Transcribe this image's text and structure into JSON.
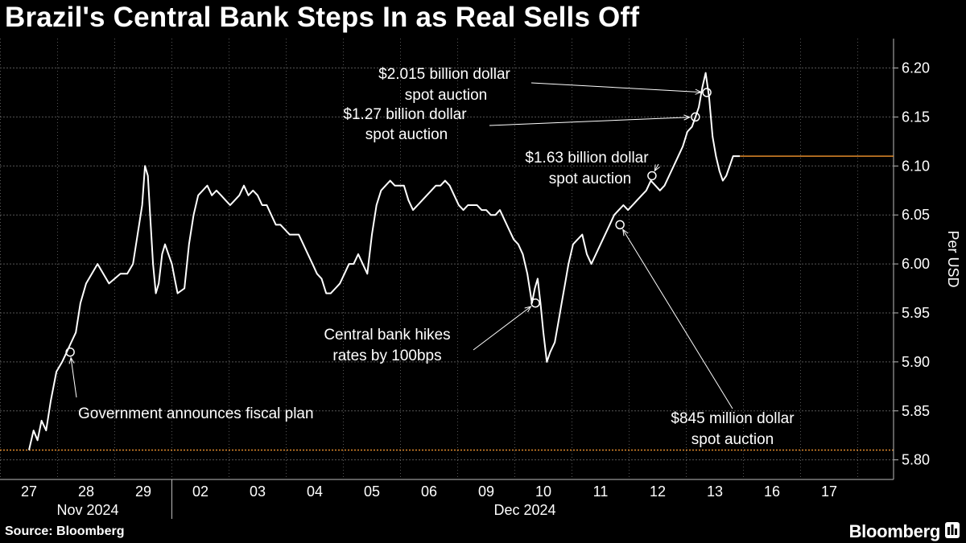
{
  "title": "Brazil's Central Bank Steps In as Real Sells Off",
  "source": "Source: Bloomberg",
  "brand": "Bloomberg",
  "colors": {
    "background": "#000000",
    "line": "#ffffff",
    "grid": "#555555",
    "reference_line": "#e08a2a"
  },
  "chart_data": {
    "type": "line",
    "title": "Brazil's Central Bank Steps In as Real Sells Off",
    "ylabel": "Per USD",
    "ylim": [
      5.78,
      6.23
    ],
    "yticks": [
      5.8,
      5.85,
      5.9,
      5.95,
      6.0,
      6.05,
      6.1,
      6.15,
      6.2
    ],
    "ytick_labels": [
      "5.80",
      "5.85",
      "5.90",
      "5.95",
      "6.00",
      "6.05",
      "6.10",
      "6.15",
      "6.20"
    ],
    "grid": true,
    "x_day_labels": [
      "27",
      "28",
      "29",
      "02",
      "03",
      "04",
      "05",
      "06",
      "09",
      "10",
      "11",
      "12",
      "13",
      "16",
      "17"
    ],
    "month_labels": [
      "Nov 2024",
      "Dec 2024"
    ],
    "reference_value": 5.81,
    "last_value": 6.11,
    "series": [
      {
        "points": [
          [
            0.0,
            5.81
          ],
          [
            0.08,
            5.83
          ],
          [
            0.15,
            5.82
          ],
          [
            0.22,
            5.84
          ],
          [
            0.3,
            5.83
          ],
          [
            0.38,
            5.86
          ],
          [
            0.48,
            5.89
          ],
          [
            0.58,
            5.9
          ],
          [
            0.66,
            5.91
          ],
          [
            0.74,
            5.92
          ],
          [
            0.82,
            5.93
          ],
          [
            0.9,
            5.96
          ],
          [
            1.0,
            5.98
          ],
          [
            1.1,
            5.99
          ],
          [
            1.2,
            6.0
          ],
          [
            1.3,
            5.99
          ],
          [
            1.4,
            5.98
          ],
          [
            1.5,
            5.985
          ],
          [
            1.6,
            5.99
          ],
          [
            1.72,
            5.99
          ],
          [
            1.82,
            6.0
          ],
          [
            1.9,
            6.03
          ],
          [
            1.98,
            6.06
          ],
          [
            2.03,
            6.1
          ],
          [
            2.08,
            6.09
          ],
          [
            2.12,
            6.05
          ],
          [
            2.17,
            6.0
          ],
          [
            2.22,
            5.97
          ],
          [
            2.27,
            5.98
          ],
          [
            2.33,
            6.01
          ],
          [
            2.38,
            6.02
          ],
          [
            2.44,
            6.01
          ],
          [
            2.5,
            6.0
          ],
          [
            2.55,
            5.985
          ],
          [
            2.6,
            5.97
          ],
          [
            2.72,
            5.975
          ],
          [
            2.8,
            6.02
          ],
          [
            2.88,
            6.05
          ],
          [
            2.96,
            6.07
          ],
          [
            3.04,
            6.075
          ],
          [
            3.12,
            6.08
          ],
          [
            3.2,
            6.07
          ],
          [
            3.28,
            6.075
          ],
          [
            3.36,
            6.07
          ],
          [
            3.44,
            6.065
          ],
          [
            3.52,
            6.06
          ],
          [
            3.6,
            6.065
          ],
          [
            3.68,
            6.07
          ],
          [
            3.76,
            6.08
          ],
          [
            3.84,
            6.07
          ],
          [
            3.92,
            6.075
          ],
          [
            4.0,
            6.07
          ],
          [
            4.08,
            6.06
          ],
          [
            4.16,
            6.06
          ],
          [
            4.24,
            6.05
          ],
          [
            4.32,
            6.04
          ],
          [
            4.4,
            6.04
          ],
          [
            4.48,
            6.035
          ],
          [
            4.56,
            6.03
          ],
          [
            4.64,
            6.03
          ],
          [
            4.72,
            6.03
          ],
          [
            4.8,
            6.02
          ],
          [
            4.88,
            6.01
          ],
          [
            4.96,
            6.0
          ],
          [
            5.04,
            5.99
          ],
          [
            5.12,
            5.985
          ],
          [
            5.2,
            5.97
          ],
          [
            5.28,
            5.97
          ],
          [
            5.36,
            5.975
          ],
          [
            5.44,
            5.98
          ],
          [
            5.52,
            5.99
          ],
          [
            5.6,
            6.0
          ],
          [
            5.68,
            6.0
          ],
          [
            5.76,
            6.01
          ],
          [
            5.84,
            6.0
          ],
          [
            5.92,
            5.99
          ],
          [
            6.0,
            6.03
          ],
          [
            6.08,
            6.06
          ],
          [
            6.16,
            6.075
          ],
          [
            6.24,
            6.08
          ],
          [
            6.32,
            6.085
          ],
          [
            6.4,
            6.08
          ],
          [
            6.48,
            6.08
          ],
          [
            6.56,
            6.08
          ],
          [
            6.64,
            6.065
          ],
          [
            6.72,
            6.055
          ],
          [
            6.8,
            6.06
          ],
          [
            6.88,
            6.065
          ],
          [
            6.96,
            6.07
          ],
          [
            7.04,
            6.075
          ],
          [
            7.12,
            6.08
          ],
          [
            7.2,
            6.08
          ],
          [
            7.28,
            6.085
          ],
          [
            7.36,
            6.08
          ],
          [
            7.44,
            6.07
          ],
          [
            7.52,
            6.06
          ],
          [
            7.6,
            6.055
          ],
          [
            7.68,
            6.06
          ],
          [
            7.76,
            6.06
          ],
          [
            7.84,
            6.06
          ],
          [
            7.92,
            6.055
          ],
          [
            8.0,
            6.055
          ],
          [
            8.08,
            6.05
          ],
          [
            8.16,
            6.05
          ],
          [
            8.24,
            6.055
          ],
          [
            8.32,
            6.045
          ],
          [
            8.4,
            6.035
          ],
          [
            8.48,
            6.025
          ],
          [
            8.56,
            6.02
          ],
          [
            8.64,
            6.01
          ],
          [
            8.72,
            5.99
          ],
          [
            8.8,
            5.96
          ],
          [
            8.85,
            5.975
          ],
          [
            8.9,
            5.985
          ],
          [
            8.95,
            5.96
          ],
          [
            9.0,
            5.93
          ],
          [
            9.06,
            5.9
          ],
          [
            9.12,
            5.91
          ],
          [
            9.2,
            5.92
          ],
          [
            9.26,
            5.94
          ],
          [
            9.32,
            5.96
          ],
          [
            9.38,
            5.98
          ],
          [
            9.44,
            6.0
          ],
          [
            9.52,
            6.02
          ],
          [
            9.6,
            6.025
          ],
          [
            9.68,
            6.03
          ],
          [
            9.76,
            6.01
          ],
          [
            9.84,
            6.0
          ],
          [
            9.92,
            6.01
          ],
          [
            10.0,
            6.02
          ],
          [
            10.08,
            6.03
          ],
          [
            10.16,
            6.04
          ],
          [
            10.24,
            6.05
          ],
          [
            10.32,
            6.055
          ],
          [
            10.4,
            6.06
          ],
          [
            10.48,
            6.055
          ],
          [
            10.56,
            6.06
          ],
          [
            10.64,
            6.065
          ],
          [
            10.72,
            6.07
          ],
          [
            10.8,
            6.075
          ],
          [
            10.88,
            6.085
          ],
          [
            10.96,
            6.08
          ],
          [
            11.04,
            6.075
          ],
          [
            11.12,
            6.08
          ],
          [
            11.2,
            6.09
          ],
          [
            11.28,
            6.1
          ],
          [
            11.36,
            6.11
          ],
          [
            11.44,
            6.12
          ],
          [
            11.52,
            6.135
          ],
          [
            11.6,
            6.14
          ],
          [
            11.66,
            6.15
          ],
          [
            11.72,
            6.16
          ],
          [
            11.78,
            6.18
          ],
          [
            11.84,
            6.195
          ],
          [
            11.9,
            6.17
          ],
          [
            11.96,
            6.13
          ],
          [
            12.02,
            6.11
          ],
          [
            12.08,
            6.095
          ],
          [
            12.14,
            6.085
          ],
          [
            12.2,
            6.09
          ],
          [
            12.26,
            6.1
          ],
          [
            12.32,
            6.11
          ],
          [
            12.38,
            6.11
          ],
          [
            12.44,
            6.11
          ]
        ]
      }
    ],
    "annotations": [
      {
        "text": "Government announces fiscal plan",
        "x": 0.72,
        "y": 5.91
      },
      {
        "text": "Central bank hikes rates by 100bps",
        "x": 8.86,
        "y": 5.96
      },
      {
        "text": "$845 million dollar spot auction",
        "x": 10.34,
        "y": 6.04
      },
      {
        "text": "$1.63 billion dollar spot auction",
        "x": 10.9,
        "y": 6.09
      },
      {
        "text": "$1.27 billion dollar spot auction",
        "x": 11.66,
        "y": 6.15
      },
      {
        "text": "$2.015 billion dollar spot auction",
        "x": 11.86,
        "y": 6.175
      }
    ]
  }
}
